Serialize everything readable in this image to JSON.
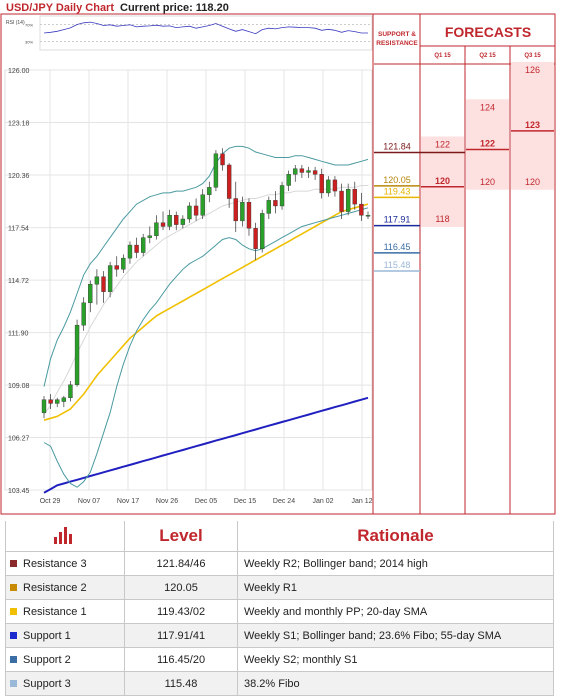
{
  "header": {
    "title": "USD/JPY Daily Chart",
    "current_price": "Current price: 118.20"
  },
  "rsi_panel": {
    "label": "RSI (14)",
    "ticks": [
      "70%",
      "30%"
    ]
  },
  "side_panel": {
    "support_resistance_title": "SUPPORT &\nRESISTANCE",
    "forecasts_title": "FORECASTS",
    "quarters": [
      "Q1 15",
      "Q2 15",
      "Q3 15"
    ],
    "levels": [
      {
        "value": "121.84",
        "y": 121.84,
        "color": "#7a1a1a"
      },
      {
        "value": "120.05",
        "y": 120.05,
        "color": "#b8860b"
      },
      {
        "value": "119.43",
        "y": 119.43,
        "color": "#e8b400"
      },
      {
        "value": "117.91",
        "y": 117.91,
        "color": "#1a2a9a"
      },
      {
        "value": "116.45",
        "y": 116.45,
        "color": "#3a6ea5"
      },
      {
        "value": "115.48",
        "y": 115.48,
        "color": "#9ab8d8"
      }
    ],
    "forecasts": [
      {
        "quarter": "Q1 15",
        "low": 118,
        "mid": 120,
        "high": 122
      },
      {
        "quarter": "Q2 15",
        "low": 120,
        "mid": 122,
        "high": 124
      },
      {
        "quarter": "Q3 15",
        "low": 120,
        "mid": 123,
        "high": 126
      }
    ],
    "colors": {
      "zone": "#fde0e0",
      "zone_border": "#c0272d",
      "line": "#c0272d"
    }
  },
  "chart_data": {
    "type": "candlestick",
    "title": "USD/JPY Daily Chart",
    "y_ticks": [
      "126.00",
      "123.18",
      "120.36",
      "117.54",
      "114.72",
      "111.90",
      "109.08",
      "106.27",
      "103.45"
    ],
    "ylim": [
      103.45,
      126.0
    ],
    "x_ticks": [
      "Oct 29",
      "Nov 07",
      "Nov 17",
      "Nov 26",
      "Dec 05",
      "Dec 15",
      "Dec 24",
      "Jan 02",
      "Jan 12"
    ],
    "grid": true,
    "candles": [
      {
        "o": 107.6,
        "h": 108.5,
        "l": 107.3,
        "c": 108.3
      },
      {
        "o": 108.3,
        "h": 108.6,
        "l": 107.8,
        "c": 108.1
      },
      {
        "o": 108.1,
        "h": 108.4,
        "l": 107.9,
        "c": 108.3
      },
      {
        "o": 108.2,
        "h": 108.5,
        "l": 107.9,
        "c": 108.4
      },
      {
        "o": 108.4,
        "h": 109.3,
        "l": 108.2,
        "c": 109.1
      },
      {
        "o": 109.1,
        "h": 112.6,
        "l": 109.0,
        "c": 112.3
      },
      {
        "o": 112.3,
        "h": 113.8,
        "l": 112.0,
        "c": 113.5
      },
      {
        "o": 113.5,
        "h": 114.7,
        "l": 113.0,
        "c": 114.5
      },
      {
        "o": 114.5,
        "h": 115.3,
        "l": 113.4,
        "c": 114.9
      },
      {
        "o": 114.9,
        "h": 115.2,
        "l": 113.5,
        "c": 114.1
      },
      {
        "o": 114.1,
        "h": 115.7,
        "l": 113.8,
        "c": 115.5
      },
      {
        "o": 115.5,
        "h": 116.0,
        "l": 114.9,
        "c": 115.3
      },
      {
        "o": 115.3,
        "h": 116.1,
        "l": 115.1,
        "c": 115.9
      },
      {
        "o": 115.9,
        "h": 116.8,
        "l": 115.6,
        "c": 116.6
      },
      {
        "o": 116.6,
        "h": 117.0,
        "l": 115.9,
        "c": 116.2
      },
      {
        "o": 116.2,
        "h": 117.2,
        "l": 116.0,
        "c": 117.0
      },
      {
        "o": 117.0,
        "h": 117.6,
        "l": 116.7,
        "c": 117.1
      },
      {
        "o": 117.1,
        "h": 118.2,
        "l": 116.9,
        "c": 117.8
      },
      {
        "o": 117.8,
        "h": 118.4,
        "l": 117.4,
        "c": 117.6
      },
      {
        "o": 117.6,
        "h": 118.5,
        "l": 117.4,
        "c": 118.2
      },
      {
        "o": 118.2,
        "h": 118.4,
        "l": 117.4,
        "c": 117.7
      },
      {
        "o": 117.7,
        "h": 118.2,
        "l": 117.5,
        "c": 118.0
      },
      {
        "o": 118.0,
        "h": 118.9,
        "l": 117.8,
        "c": 118.7
      },
      {
        "o": 118.7,
        "h": 119.1,
        "l": 117.9,
        "c": 118.2
      },
      {
        "o": 118.2,
        "h": 119.6,
        "l": 118.0,
        "c": 119.3
      },
      {
        "o": 119.3,
        "h": 120.0,
        "l": 118.9,
        "c": 119.7
      },
      {
        "o": 119.7,
        "h": 121.7,
        "l": 119.5,
        "c": 121.5
      },
      {
        "o": 121.5,
        "h": 121.8,
        "l": 120.6,
        "c": 120.9
      },
      {
        "o": 120.9,
        "h": 121.0,
        "l": 118.6,
        "c": 119.1
      },
      {
        "o": 119.1,
        "h": 120.0,
        "l": 117.3,
        "c": 117.9
      },
      {
        "o": 117.9,
        "h": 119.2,
        "l": 117.6,
        "c": 118.9
      },
      {
        "o": 118.9,
        "h": 119.1,
        "l": 117.1,
        "c": 117.5
      },
      {
        "o": 117.5,
        "h": 117.8,
        "l": 115.8,
        "c": 116.4
      },
      {
        "o": 116.4,
        "h": 118.5,
        "l": 116.2,
        "c": 118.3
      },
      {
        "o": 118.3,
        "h": 119.2,
        "l": 118.0,
        "c": 119.0
      },
      {
        "o": 119.0,
        "h": 119.5,
        "l": 118.3,
        "c": 118.7
      },
      {
        "o": 118.7,
        "h": 120.0,
        "l": 118.5,
        "c": 119.8
      },
      {
        "o": 119.8,
        "h": 120.6,
        "l": 119.5,
        "c": 120.4
      },
      {
        "o": 120.4,
        "h": 120.9,
        "l": 120.0,
        "c": 120.7
      },
      {
        "o": 120.7,
        "h": 120.9,
        "l": 120.2,
        "c": 120.5
      },
      {
        "o": 120.5,
        "h": 120.8,
        "l": 120.2,
        "c": 120.6
      },
      {
        "o": 120.6,
        "h": 120.8,
        "l": 120.1,
        "c": 120.4
      },
      {
        "o": 120.4,
        "h": 120.7,
        "l": 119.1,
        "c": 119.4
      },
      {
        "o": 119.4,
        "h": 120.3,
        "l": 119.2,
        "c": 120.1
      },
      {
        "o": 120.1,
        "h": 120.3,
        "l": 119.2,
        "c": 119.5
      },
      {
        "o": 119.5,
        "h": 119.9,
        "l": 118.0,
        "c": 118.4
      },
      {
        "o": 118.4,
        "h": 119.9,
        "l": 118.2,
        "c": 119.6
      },
      {
        "o": 119.6,
        "h": 120.0,
        "l": 118.5,
        "c": 118.8
      },
      {
        "o": 118.8,
        "h": 119.4,
        "l": 117.9,
        "c": 118.2
      },
      {
        "o": 118.2,
        "h": 118.4,
        "l": 118.0,
        "c": 118.2
      }
    ],
    "series": [
      {
        "color": "#f0c000",
        "values": [
          107.2,
          107.3,
          107.4,
          107.6,
          107.8,
          108.2,
          108.6,
          109.1,
          109.6,
          110.0,
          110.4,
          110.8,
          111.2,
          111.6,
          111.9,
          112.2,
          112.5,
          112.8,
          113.0,
          113.2,
          113.4,
          113.6,
          113.8,
          114.0,
          114.2,
          114.4,
          114.6,
          114.8,
          115.0,
          115.2,
          115.4,
          115.6,
          115.8,
          116.0,
          116.2,
          116.4,
          116.6,
          116.8,
          117.0,
          117.2,
          117.4,
          117.6,
          117.8,
          118.0,
          118.2,
          118.4,
          118.5,
          118.6,
          118.7,
          118.8
        ]
      },
      {
        "color": "#2020c0",
        "values": [
          103.3,
          103.5,
          103.7,
          103.8,
          103.9,
          104.0,
          104.1,
          104.2,
          104.3,
          104.4,
          104.5,
          104.6,
          104.7,
          104.8,
          104.9,
          105.0,
          105.1,
          105.2,
          105.3,
          105.4,
          105.5,
          105.6,
          105.7,
          105.8,
          105.9,
          106.0,
          106.1,
          106.2,
          106.3,
          106.4,
          106.5,
          106.6,
          106.7,
          106.8,
          106.9,
          107.0,
          107.1,
          107.2,
          107.3,
          107.4,
          107.5,
          107.6,
          107.7,
          107.8,
          107.9,
          108.0,
          108.1,
          108.2,
          108.3,
          108.4
        ]
      },
      {
        "color": "#4a9aa0",
        "values": [
          109.0,
          110.5,
          111.5,
          112.2,
          113.0,
          114.0,
          115.0,
          115.6,
          116.0,
          116.5,
          117.0,
          117.5,
          118.0,
          118.4,
          118.8,
          119.0,
          119.2,
          119.3,
          119.4,
          119.4,
          119.5,
          119.5,
          119.6,
          119.7,
          119.9,
          120.3,
          121.0,
          121.5,
          121.8,
          121.9,
          121.9,
          121.8,
          121.6,
          121.5,
          121.4,
          121.3,
          121.3,
          121.3,
          121.4,
          121.4,
          121.3,
          121.2,
          121.1,
          121.0,
          120.9,
          120.9,
          120.9,
          121.0,
          121.1,
          121.2
        ]
      },
      {
        "color": "#4a9aa0",
        "values": [
          106.0,
          105.8,
          105.0,
          104.3,
          103.8,
          103.6,
          103.9,
          104.4,
          105.4,
          106.5,
          107.6,
          109.0,
          110.2,
          111.2,
          112.0,
          112.6,
          113.1,
          113.5,
          114.0,
          114.5,
          114.9,
          115.3,
          115.6,
          115.8,
          116.0,
          116.3,
          116.6,
          116.9,
          117.0,
          116.9,
          116.6,
          116.4,
          116.3,
          116.4,
          116.6,
          116.8,
          117.0,
          117.2,
          117.4,
          117.6,
          117.7,
          117.8,
          117.9,
          118.0,
          118.1,
          118.2,
          118.3,
          118.4,
          118.5,
          118.6
        ]
      },
      {
        "color": "#d8d8d8",
        "values": [
          107.5,
          108.0,
          108.7,
          109.3,
          110.0,
          110.8,
          111.5,
          112.2,
          112.8,
          113.4,
          113.9,
          114.4,
          114.9,
          115.3,
          115.7,
          116.0,
          116.3,
          116.6,
          116.9,
          117.1,
          117.3,
          117.5,
          117.7,
          117.9,
          118.1,
          118.3,
          118.5,
          118.7,
          118.8,
          118.9,
          119.0,
          119.1,
          119.1,
          119.2,
          119.3,
          119.3,
          119.4,
          119.4,
          119.5,
          119.5,
          119.5,
          119.6,
          119.6,
          119.6,
          119.6,
          119.7,
          119.7,
          119.7,
          119.8,
          119.8
        ]
      }
    ],
    "rsi": [
      50,
      52,
      55,
      60,
      65,
      75,
      80,
      82,
      78,
      72,
      74,
      70,
      72,
      74,
      68,
      70,
      71,
      73,
      70,
      71,
      66,
      68,
      70,
      64,
      68,
      72,
      78,
      70,
      62,
      55,
      60,
      54,
      48,
      60,
      64,
      62,
      66,
      68,
      67,
      66,
      66,
      64,
      58,
      61,
      58,
      52,
      57,
      54,
      50,
      50
    ]
  },
  "levels_table": {
    "header": {
      "level": "Level",
      "rationale": "Rationale"
    },
    "rows": [
      {
        "name": "Resistance 3",
        "level": "121.84/46",
        "rationale": "Weekly R2; Bollinger band; 2014 high",
        "color": "#8a2a2a"
      },
      {
        "name": "Resistance 2",
        "level": "120.05",
        "rationale": "Weekly R1",
        "color": "#c88a00"
      },
      {
        "name": "Resistance 1",
        "level": "119.43/02",
        "rationale": "Weekly and monthly PP; 20-day SMA",
        "color": "#f0c000"
      },
      {
        "name": "Support 1",
        "level": "117.91/41",
        "rationale": "Weekly S1; Bollinger band; 23.6% Fibo; 55-day SMA",
        "color": "#1a2acc"
      },
      {
        "name": "Support 2",
        "level": "116.45/20",
        "rationale": "Weekly S2; monthly S1",
        "color": "#3a6ea5"
      },
      {
        "name": "Support 3",
        "level": "115.48",
        "rationale": "38.2% Fibo",
        "color": "#9ab8d8"
      }
    ]
  }
}
